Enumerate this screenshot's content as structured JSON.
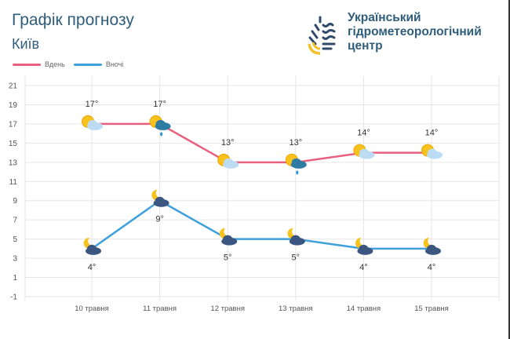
{
  "header": {
    "title": "Графік прогнозу",
    "city": "Київ",
    "organization": [
      "Український",
      "гідрометеорологічний",
      "центр"
    ]
  },
  "colors": {
    "day": "#e8607e",
    "night": "#3fa0dc",
    "text": "#2f5d7c"
  },
  "chart_data": {
    "type": "line",
    "title": "Графік прогнозу",
    "xlabel": "",
    "ylabel": "",
    "categories": [
      "10 травня",
      "11 травня",
      "12 травня",
      "13 травня",
      "14 травня",
      "15 травня"
    ],
    "ylim": [
      -1,
      21
    ],
    "yticks": [
      -1,
      1,
      3,
      5,
      7,
      9,
      11,
      13,
      15,
      17,
      19,
      21
    ],
    "grid": true,
    "legend_position": "top-left",
    "series": [
      {
        "name": "Вдень",
        "values": [
          17,
          17,
          13,
          13,
          14,
          14
        ],
        "labels": [
          "17°",
          "17°",
          "13°",
          "13°",
          "14°",
          "14°"
        ],
        "icons": [
          "sun-cloud-icon",
          "sun-rain-cloud-icon",
          "sun-cloud-icon",
          "sun-rain-cloud-icon",
          "sun-cloud-icon",
          "sun-cloud-icon"
        ]
      },
      {
        "name": "Вночі",
        "values": [
          4,
          9,
          5,
          5,
          4,
          4
        ],
        "labels": [
          "4°",
          "9°",
          "5°",
          "5°",
          "4°",
          "4°"
        ],
        "icons": [
          "moon-cloud-icon",
          "moon-cloud-icon",
          "moon-cloud-icon",
          "moon-cloud-icon",
          "moon-cloud-icon",
          "moon-cloud-icon"
        ]
      }
    ]
  }
}
